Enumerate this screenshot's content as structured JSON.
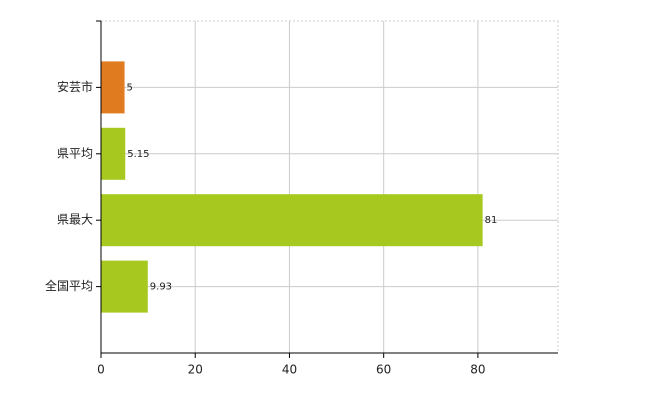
{
  "chart_data": {
    "type": "hbar",
    "categories": [
      "安芸市",
      "県平均",
      "県最大",
      "全国平均"
    ],
    "values": [
      5,
      5.15,
      81,
      9.93
    ],
    "colors": [
      "#e07b20",
      "#a7c91f",
      "#a7c91f",
      "#a7c91f"
    ],
    "xlim": [
      0,
      97
    ],
    "xticks": [
      0,
      20,
      40,
      60,
      80
    ],
    "grid": true
  }
}
